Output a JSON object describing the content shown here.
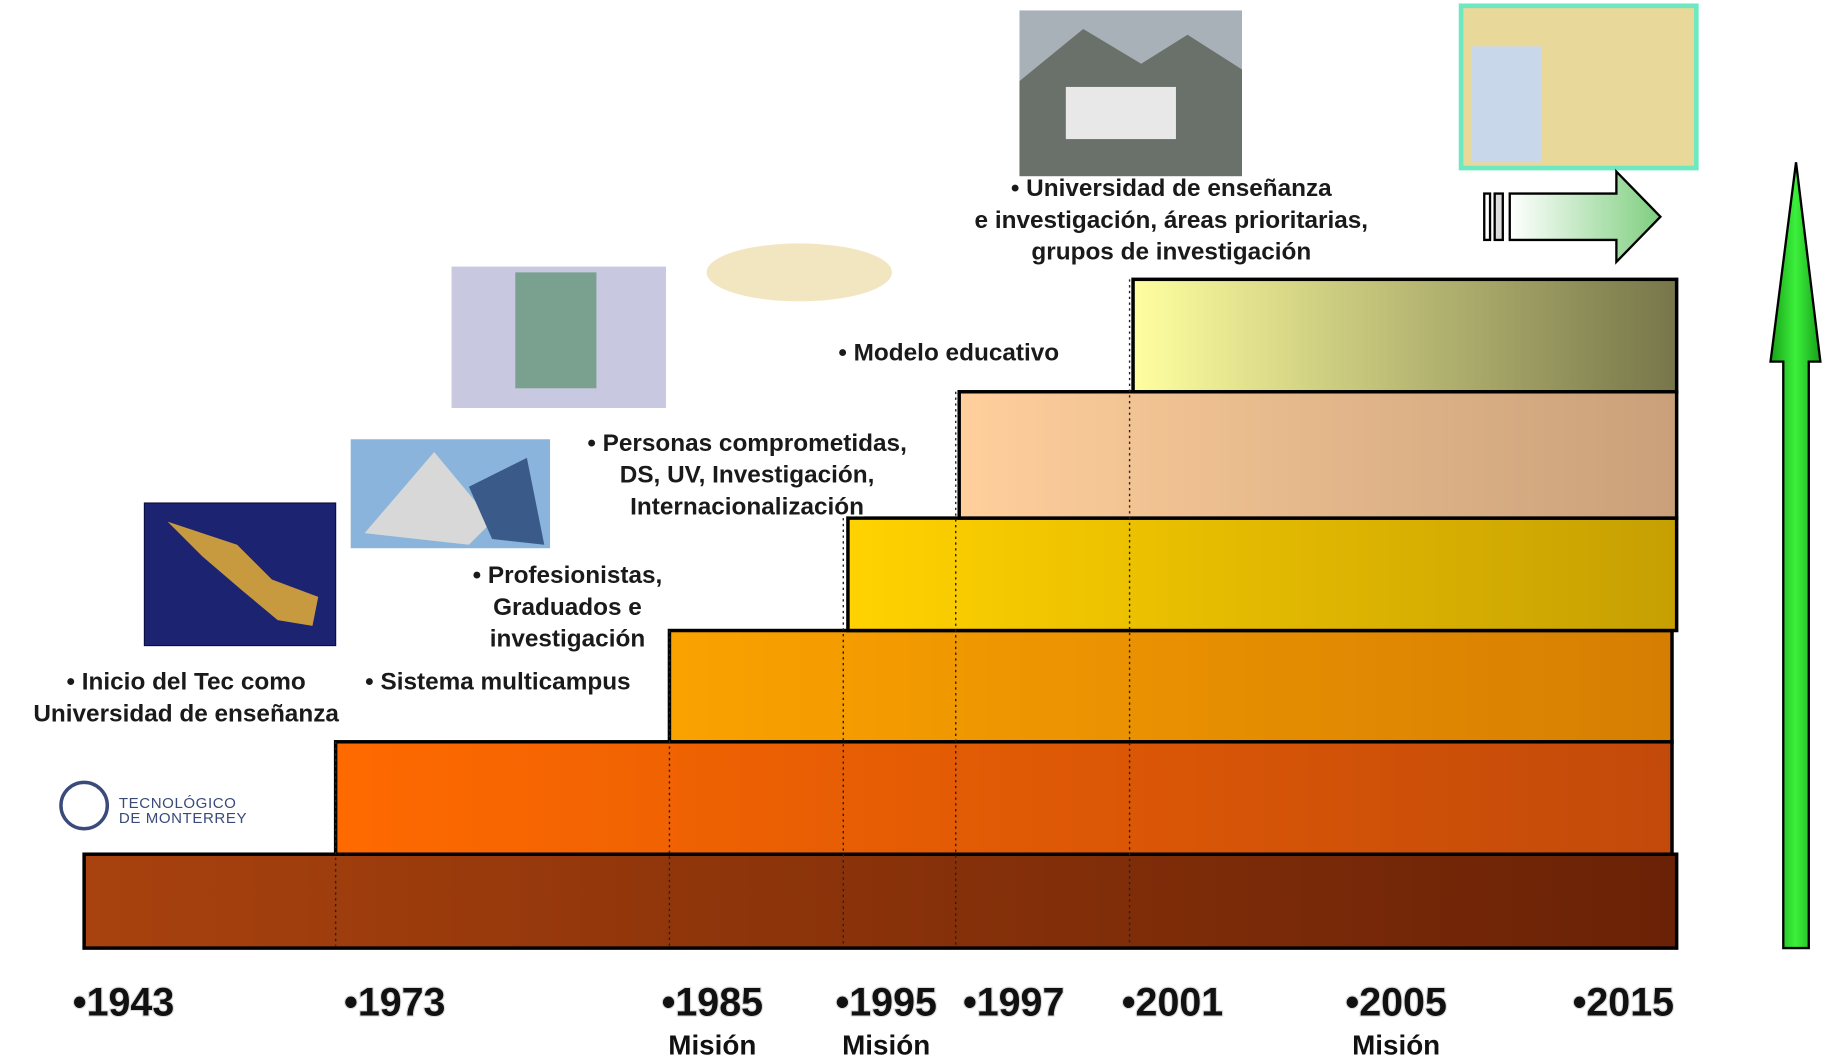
{
  "steps": [
    {
      "label": [
        "• Inicio del Tec como",
        "Universidad de enseñanza"
      ]
    },
    {
      "label": [
        "• Sistema multicampus"
      ]
    },
    {
      "label": [
        "• Profesionistas,",
        "Graduados e",
        "investigación"
      ]
    },
    {
      "label": [
        "• Personas comprometidas,",
        "DS, UV, Investigación,",
        "Internacionalización"
      ]
    },
    {
      "label": [
        "• Modelo educativo"
      ]
    },
    {
      "label": [
        "• Universidad de enseñanza",
        "e investigación, áreas prioritarias,",
        "grupos de investigación"
      ]
    }
  ],
  "years": [
    {
      "label": "•1943"
    },
    {
      "label": "•1973"
    },
    {
      "label": "•1985",
      "note": "Misión"
    },
    {
      "label": "•1995",
      "note": "Misión"
    },
    {
      "label": "•1997"
    },
    {
      "label": "•2001"
    },
    {
      "label": "•2005",
      "note": "Misión"
    },
    {
      "label": "•2015"
    }
  ],
  "logo": {
    "line1": "TECNOLÓGICO",
    "line2": "DE MONTERREY"
  }
}
